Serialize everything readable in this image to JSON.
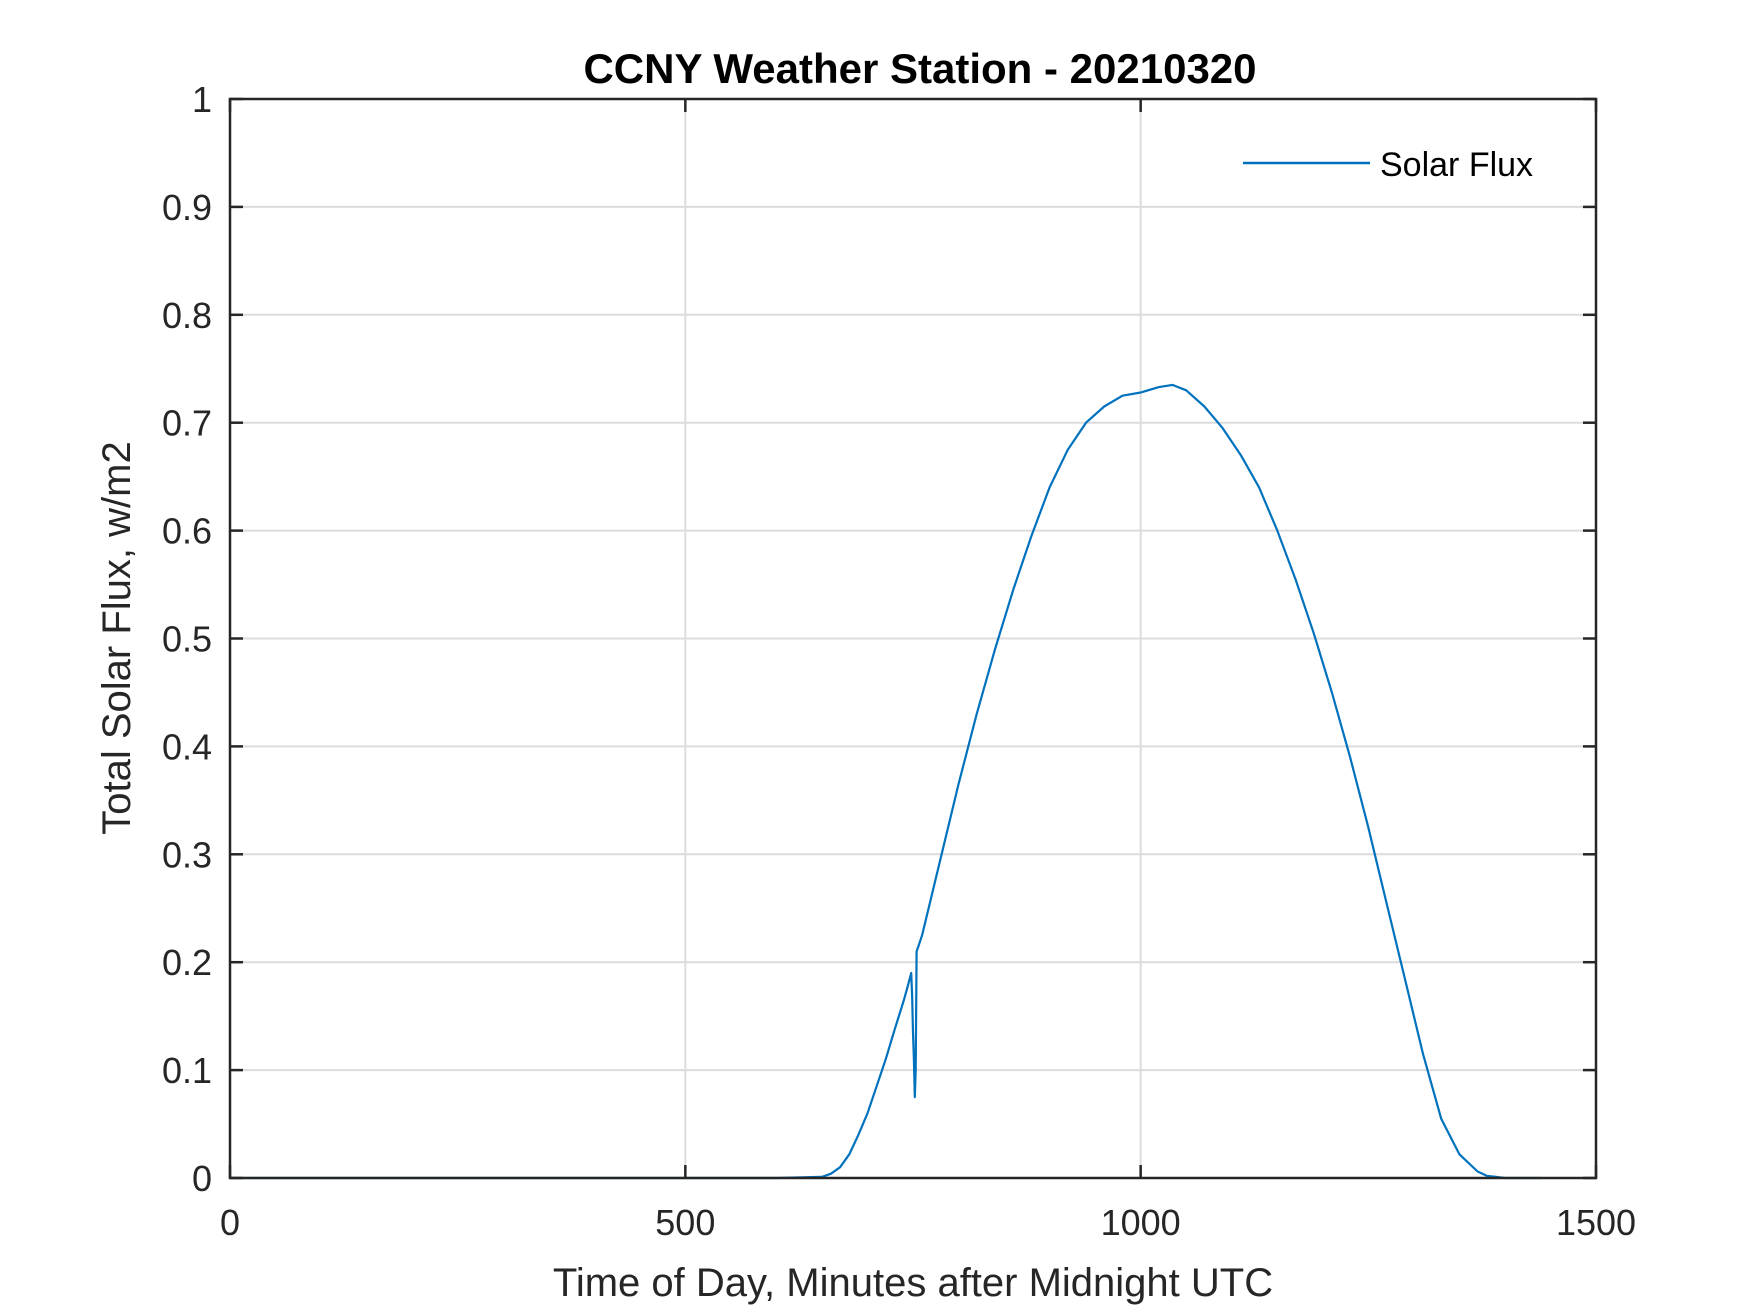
{
  "chart_data": {
    "type": "line",
    "title": "CCNY Weather Station - 20210320",
    "xlabel": "Time of Day, Minutes after Midnight UTC",
    "ylabel": "Total Solar Flux, w/m2",
    "xlim": [
      0,
      1500
    ],
    "ylim": [
      0,
      1
    ],
    "xticks": [
      0,
      500,
      1000,
      1500
    ],
    "xtick_labels": [
      "0",
      "500",
      "1000",
      "1500"
    ],
    "yticks": [
      0,
      0.1,
      0.2,
      0.3,
      0.4,
      0.5,
      0.6,
      0.7,
      0.8,
      0.9,
      1
    ],
    "ytick_labels": [
      "0",
      "0.1",
      "0.2",
      "0.3",
      "0.4",
      "0.5",
      "0.6",
      "0.7",
      "0.8",
      "0.9",
      "1"
    ],
    "grid": true,
    "legend_location": "top-right",
    "series": [
      {
        "name": "Solar Flux",
        "color": "#0072BD",
        "x": [
          0,
          100,
          200,
          300,
          400,
          500,
          600,
          650,
          660,
          670,
          680,
          690,
          700,
          710,
          720,
          730,
          740,
          745,
          748,
          749,
          750,
          751,
          752,
          753,
          754,
          756,
          760,
          770,
          780,
          800,
          820,
          840,
          860,
          880,
          900,
          920,
          940,
          960,
          980,
          1000,
          1020,
          1035,
          1050,
          1070,
          1090,
          1110,
          1130,
          1150,
          1170,
          1190,
          1210,
          1230,
          1250,
          1270,
          1290,
          1310,
          1330,
          1350,
          1370,
          1380,
          1390,
          1400,
          1410,
          1420,
          1430,
          1440
        ],
        "y": [
          0,
          0,
          0,
          0,
          0,
          0,
          0,
          0.001,
          0.004,
          0.01,
          0.022,
          0.04,
          0.06,
          0.085,
          0.11,
          0.138,
          0.165,
          0.18,
          0.19,
          0.17,
          0.135,
          0.11,
          0.075,
          0.1,
          0.21,
          0.215,
          0.225,
          0.26,
          0.295,
          0.365,
          0.43,
          0.49,
          0.545,
          0.595,
          0.64,
          0.675,
          0.7,
          0.715,
          0.725,
          0.728,
          0.733,
          0.735,
          0.73,
          0.715,
          0.695,
          0.67,
          0.64,
          0.6,
          0.555,
          0.505,
          0.45,
          0.39,
          0.325,
          0.255,
          0.185,
          0.115,
          0.055,
          0.022,
          0.006,
          0.002,
          0.001,
          0,
          0,
          0,
          0,
          0
        ]
      }
    ]
  }
}
